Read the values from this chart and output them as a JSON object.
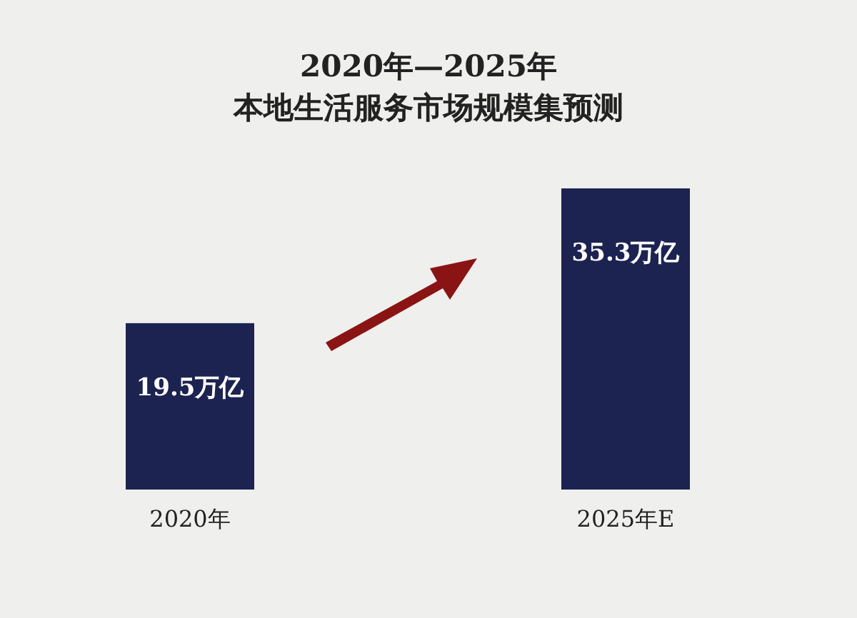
{
  "chart_data": {
    "type": "bar",
    "title": "2020年—2025年",
    "subtitle": "本地生活服务市场规模集预测",
    "categories": [
      "2020年",
      "2025年E"
    ],
    "values": [
      19.5,
      35.3
    ],
    "value_labels": [
      "19.5万亿",
      "35.3万亿"
    ],
    "color": "#1c2350"
  }
}
